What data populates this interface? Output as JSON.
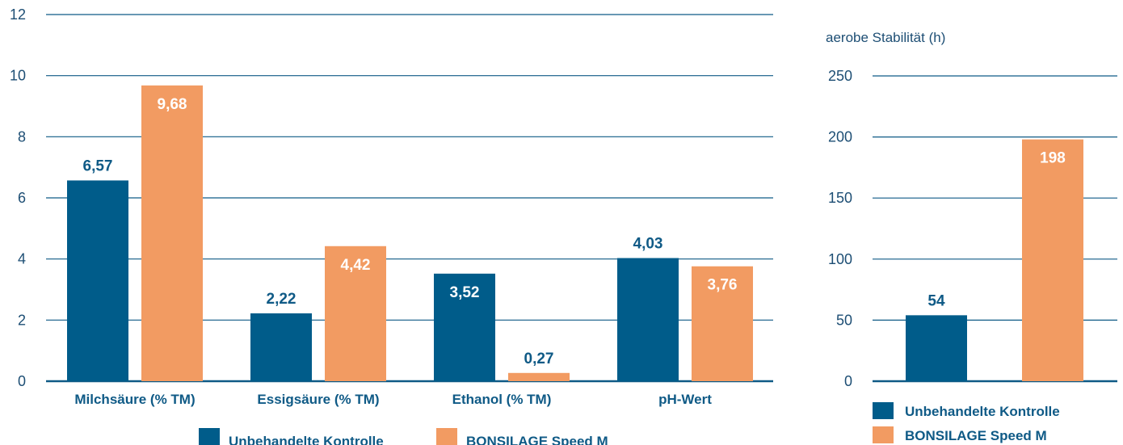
{
  "colors": {
    "control": "#005c8a",
    "product": "#f29b62",
    "grid": "#0f5a86",
    "label_dark": "#0f5a86",
    "label_light": "#ffffff"
  },
  "legend": {
    "items": [
      {
        "label": "Unbehandelte Kontrolle",
        "color": "#005c8a"
      },
      {
        "label": "BONSILAGE Speed M",
        "color": "#f29b62"
      }
    ]
  },
  "chart_data": [
    {
      "type": "bar",
      "title": "",
      "xlabel": "",
      "ylabel": "",
      "categories": [
        "Milchsäure (% TM)",
        "Essigsäure (% TM)",
        "Ethanol (% TM)",
        "pH-Wert"
      ],
      "series": [
        {
          "name": "Unbehandelte Kontrolle",
          "values": [
            6.57,
            2.22,
            3.52,
            4.03
          ],
          "labels": [
            "6,57",
            "2,22",
            "3,52",
            "4,03"
          ]
        },
        {
          "name": "BONSILAGE Speed M",
          "values": [
            9.68,
            4.42,
            0.27,
            3.76
          ],
          "labels": [
            "9,68",
            "4,42",
            "0,27",
            "3,76"
          ]
        }
      ],
      "ylim": [
        0,
        12
      ],
      "yticks": [
        0,
        2,
        4,
        6,
        8,
        10,
        12
      ],
      "grid": true,
      "legend": "bottom"
    },
    {
      "type": "bar",
      "title": "",
      "xlabel": "",
      "ylabel": "aerobe Stabilität (h)",
      "categories": [
        ""
      ],
      "series": [
        {
          "name": "Unbehandelte Kontrolle",
          "values": [
            54
          ],
          "labels": [
            "54"
          ]
        },
        {
          "name": "BONSILAGE Speed M",
          "values": [
            198
          ],
          "labels": [
            "198"
          ]
        }
      ],
      "ylim": [
        0,
        250
      ],
      "yticks": [
        0,
        50,
        100,
        150,
        200,
        250
      ],
      "grid": true,
      "legend": "bottom"
    }
  ]
}
